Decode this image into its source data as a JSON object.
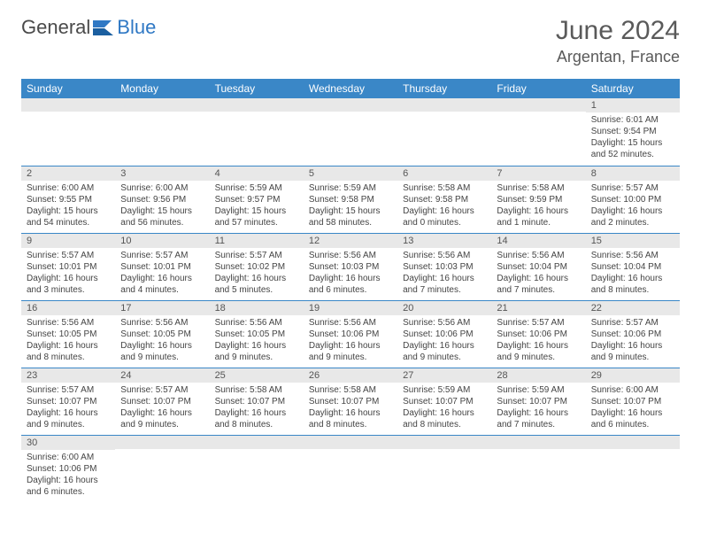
{
  "brand": {
    "part1": "General",
    "part2": "Blue"
  },
  "title": "June 2024",
  "location": "Argentan, France",
  "colors": {
    "header_bg": "#3a87c7",
    "header_text": "#ffffff",
    "daynum_bg": "#e8e8e8",
    "border": "#3a87c7",
    "body_text": "#444444",
    "title_text": "#5a5a5a"
  },
  "weekdays": [
    "Sunday",
    "Monday",
    "Tuesday",
    "Wednesday",
    "Thursday",
    "Friday",
    "Saturday"
  ],
  "cells": [
    {
      "n": "",
      "sr": "",
      "ss": "",
      "dl": ""
    },
    {
      "n": "",
      "sr": "",
      "ss": "",
      "dl": ""
    },
    {
      "n": "",
      "sr": "",
      "ss": "",
      "dl": ""
    },
    {
      "n": "",
      "sr": "",
      "ss": "",
      "dl": ""
    },
    {
      "n": "",
      "sr": "",
      "ss": "",
      "dl": ""
    },
    {
      "n": "",
      "sr": "",
      "ss": "",
      "dl": ""
    },
    {
      "n": "1",
      "sr": "Sunrise: 6:01 AM",
      "ss": "Sunset: 9:54 PM",
      "dl": "Daylight: 15 hours and 52 minutes."
    },
    {
      "n": "2",
      "sr": "Sunrise: 6:00 AM",
      "ss": "Sunset: 9:55 PM",
      "dl": "Daylight: 15 hours and 54 minutes."
    },
    {
      "n": "3",
      "sr": "Sunrise: 6:00 AM",
      "ss": "Sunset: 9:56 PM",
      "dl": "Daylight: 15 hours and 56 minutes."
    },
    {
      "n": "4",
      "sr": "Sunrise: 5:59 AM",
      "ss": "Sunset: 9:57 PM",
      "dl": "Daylight: 15 hours and 57 minutes."
    },
    {
      "n": "5",
      "sr": "Sunrise: 5:59 AM",
      "ss": "Sunset: 9:58 PM",
      "dl": "Daylight: 15 hours and 58 minutes."
    },
    {
      "n": "6",
      "sr": "Sunrise: 5:58 AM",
      "ss": "Sunset: 9:58 PM",
      "dl": "Daylight: 16 hours and 0 minutes."
    },
    {
      "n": "7",
      "sr": "Sunrise: 5:58 AM",
      "ss": "Sunset: 9:59 PM",
      "dl": "Daylight: 16 hours and 1 minute."
    },
    {
      "n": "8",
      "sr": "Sunrise: 5:57 AM",
      "ss": "Sunset: 10:00 PM",
      "dl": "Daylight: 16 hours and 2 minutes."
    },
    {
      "n": "9",
      "sr": "Sunrise: 5:57 AM",
      "ss": "Sunset: 10:01 PM",
      "dl": "Daylight: 16 hours and 3 minutes."
    },
    {
      "n": "10",
      "sr": "Sunrise: 5:57 AM",
      "ss": "Sunset: 10:01 PM",
      "dl": "Daylight: 16 hours and 4 minutes."
    },
    {
      "n": "11",
      "sr": "Sunrise: 5:57 AM",
      "ss": "Sunset: 10:02 PM",
      "dl": "Daylight: 16 hours and 5 minutes."
    },
    {
      "n": "12",
      "sr": "Sunrise: 5:56 AM",
      "ss": "Sunset: 10:03 PM",
      "dl": "Daylight: 16 hours and 6 minutes."
    },
    {
      "n": "13",
      "sr": "Sunrise: 5:56 AM",
      "ss": "Sunset: 10:03 PM",
      "dl": "Daylight: 16 hours and 7 minutes."
    },
    {
      "n": "14",
      "sr": "Sunrise: 5:56 AM",
      "ss": "Sunset: 10:04 PM",
      "dl": "Daylight: 16 hours and 7 minutes."
    },
    {
      "n": "15",
      "sr": "Sunrise: 5:56 AM",
      "ss": "Sunset: 10:04 PM",
      "dl": "Daylight: 16 hours and 8 minutes."
    },
    {
      "n": "16",
      "sr": "Sunrise: 5:56 AM",
      "ss": "Sunset: 10:05 PM",
      "dl": "Daylight: 16 hours and 8 minutes."
    },
    {
      "n": "17",
      "sr": "Sunrise: 5:56 AM",
      "ss": "Sunset: 10:05 PM",
      "dl": "Daylight: 16 hours and 9 minutes."
    },
    {
      "n": "18",
      "sr": "Sunrise: 5:56 AM",
      "ss": "Sunset: 10:05 PM",
      "dl": "Daylight: 16 hours and 9 minutes."
    },
    {
      "n": "19",
      "sr": "Sunrise: 5:56 AM",
      "ss": "Sunset: 10:06 PM",
      "dl": "Daylight: 16 hours and 9 minutes."
    },
    {
      "n": "20",
      "sr": "Sunrise: 5:56 AM",
      "ss": "Sunset: 10:06 PM",
      "dl": "Daylight: 16 hours and 9 minutes."
    },
    {
      "n": "21",
      "sr": "Sunrise: 5:57 AM",
      "ss": "Sunset: 10:06 PM",
      "dl": "Daylight: 16 hours and 9 minutes."
    },
    {
      "n": "22",
      "sr": "Sunrise: 5:57 AM",
      "ss": "Sunset: 10:06 PM",
      "dl": "Daylight: 16 hours and 9 minutes."
    },
    {
      "n": "23",
      "sr": "Sunrise: 5:57 AM",
      "ss": "Sunset: 10:07 PM",
      "dl": "Daylight: 16 hours and 9 minutes."
    },
    {
      "n": "24",
      "sr": "Sunrise: 5:57 AM",
      "ss": "Sunset: 10:07 PM",
      "dl": "Daylight: 16 hours and 9 minutes."
    },
    {
      "n": "25",
      "sr": "Sunrise: 5:58 AM",
      "ss": "Sunset: 10:07 PM",
      "dl": "Daylight: 16 hours and 8 minutes."
    },
    {
      "n": "26",
      "sr": "Sunrise: 5:58 AM",
      "ss": "Sunset: 10:07 PM",
      "dl": "Daylight: 16 hours and 8 minutes."
    },
    {
      "n": "27",
      "sr": "Sunrise: 5:59 AM",
      "ss": "Sunset: 10:07 PM",
      "dl": "Daylight: 16 hours and 8 minutes."
    },
    {
      "n": "28",
      "sr": "Sunrise: 5:59 AM",
      "ss": "Sunset: 10:07 PM",
      "dl": "Daylight: 16 hours and 7 minutes."
    },
    {
      "n": "29",
      "sr": "Sunrise: 6:00 AM",
      "ss": "Sunset: 10:07 PM",
      "dl": "Daylight: 16 hours and 6 minutes."
    },
    {
      "n": "30",
      "sr": "Sunrise: 6:00 AM",
      "ss": "Sunset: 10:06 PM",
      "dl": "Daylight: 16 hours and 6 minutes."
    },
    {
      "n": "",
      "sr": "",
      "ss": "",
      "dl": ""
    },
    {
      "n": "",
      "sr": "",
      "ss": "",
      "dl": ""
    },
    {
      "n": "",
      "sr": "",
      "ss": "",
      "dl": ""
    },
    {
      "n": "",
      "sr": "",
      "ss": "",
      "dl": ""
    },
    {
      "n": "",
      "sr": "",
      "ss": "",
      "dl": ""
    },
    {
      "n": "",
      "sr": "",
      "ss": "",
      "dl": ""
    }
  ]
}
